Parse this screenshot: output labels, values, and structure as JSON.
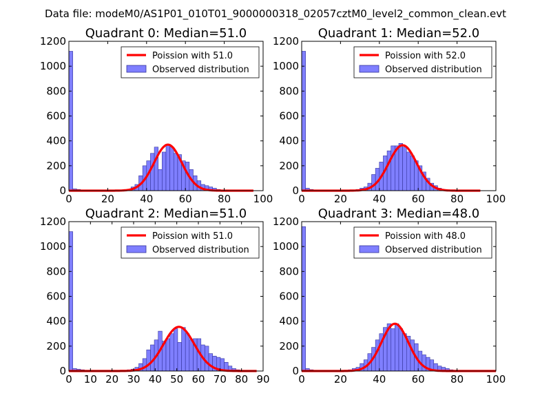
{
  "suptitle": "Data file: modeM0/AS1P01_010T01_9000000318_02057cztM0_level2_common_clean.evt",
  "colors": {
    "bar": "#7f7fff",
    "bar_edge": "#333399",
    "fit": "#ff0000"
  },
  "chart_data": [
    {
      "type": "bar",
      "title": "Quadrant 0: Median=51.0",
      "legend": [
        "Poission with 51.0",
        "Observed distribution"
      ],
      "legend_position": "top-right",
      "xlim": [
        0,
        100
      ],
      "ylim": [
        0,
        1200
      ],
      "xticks": [
        0,
        20,
        40,
        60,
        80,
        100
      ],
      "yticks": [
        0,
        200,
        400,
        600,
        800,
        1000,
        1200
      ],
      "bin_width": 2.0,
      "bins": [
        [
          0,
          1120
        ],
        [
          2,
          15
        ],
        [
          4,
          10
        ],
        [
          6,
          4
        ],
        [
          8,
          3
        ],
        [
          10,
          2
        ],
        [
          30,
          10
        ],
        [
          32,
          30
        ],
        [
          34,
          50
        ],
        [
          36,
          120
        ],
        [
          38,
          200
        ],
        [
          40,
          240
        ],
        [
          42,
          300
        ],
        [
          44,
          350
        ],
        [
          46,
          170
        ],
        [
          48,
          310
        ],
        [
          50,
          370
        ],
        [
          52,
          350
        ],
        [
          54,
          300
        ],
        [
          56,
          290
        ],
        [
          58,
          240
        ],
        [
          60,
          230
        ],
        [
          62,
          170
        ],
        [
          64,
          120
        ],
        [
          66,
          80
        ],
        [
          68,
          50
        ],
        [
          70,
          40
        ],
        [
          72,
          30
        ],
        [
          74,
          20
        ],
        [
          76,
          10
        ],
        [
          78,
          5
        ],
        [
          80,
          3
        ]
      ],
      "poisson_mean": 51.0,
      "poisson_peak": 370,
      "fit_range": [
        0,
        95
      ]
    },
    {
      "type": "bar",
      "title": "Quadrant 1: Median=52.0",
      "legend": [
        "Poission with 52.0",
        "Observed distribution"
      ],
      "legend_position": "top-right",
      "xlim": [
        0,
        100
      ],
      "ylim": [
        0,
        1200
      ],
      "xticks": [
        0,
        20,
        40,
        60,
        80,
        100
      ],
      "yticks": [
        0,
        200,
        400,
        600,
        800,
        1000,
        1200
      ],
      "bin_width": 2.0,
      "bins": [
        [
          0,
          1120
        ],
        [
          2,
          20
        ],
        [
          4,
          10
        ],
        [
          6,
          5
        ],
        [
          8,
          3
        ],
        [
          10,
          2
        ],
        [
          28,
          10
        ],
        [
          30,
          20
        ],
        [
          32,
          30
        ],
        [
          34,
          60
        ],
        [
          36,
          130
        ],
        [
          38,
          180
        ],
        [
          40,
          230
        ],
        [
          42,
          280
        ],
        [
          44,
          320
        ],
        [
          46,
          360
        ],
        [
          48,
          360
        ],
        [
          50,
          380
        ],
        [
          52,
          350
        ],
        [
          54,
          310
        ],
        [
          56,
          280
        ],
        [
          58,
          240
        ],
        [
          60,
          200
        ],
        [
          62,
          150
        ],
        [
          64,
          100
        ],
        [
          66,
          60
        ],
        [
          68,
          40
        ],
        [
          70,
          20
        ],
        [
          72,
          10
        ],
        [
          74,
          5
        ]
      ],
      "poisson_mean": 52.0,
      "poisson_peak": 365,
      "fit_range": [
        0,
        92
      ]
    },
    {
      "type": "bar",
      "title": "Quadrant 2: Median=51.0",
      "legend": [
        "Poission with 51.0",
        "Observed distribution"
      ],
      "legend_position": "top-right",
      "xlim": [
        0,
        90
      ],
      "ylim": [
        0,
        1200
      ],
      "xticks": [
        0,
        10,
        20,
        30,
        40,
        50,
        60,
        70,
        80,
        90
      ],
      "yticks": [
        0,
        200,
        400,
        600,
        800,
        1000,
        1200
      ],
      "bin_width": 1.8,
      "bins": [
        [
          0,
          1120
        ],
        [
          1.8,
          20
        ],
        [
          3.6,
          15
        ],
        [
          5.4,
          10
        ],
        [
          7.2,
          5
        ],
        [
          27,
          10
        ],
        [
          28.8,
          15
        ],
        [
          30.6,
          30
        ],
        [
          32.4,
          60
        ],
        [
          34.2,
          100
        ],
        [
          36,
          170
        ],
        [
          37.8,
          210
        ],
        [
          39.6,
          250
        ],
        [
          41.4,
          320
        ],
        [
          43.2,
          240
        ],
        [
          45,
          260
        ],
        [
          46.8,
          300
        ],
        [
          48.6,
          340
        ],
        [
          50.4,
          230
        ],
        [
          52.2,
          350
        ],
        [
          54,
          300
        ],
        [
          55.8,
          250
        ],
        [
          57.6,
          260
        ],
        [
          59.4,
          260
        ],
        [
          61.2,
          210
        ],
        [
          63,
          200
        ],
        [
          64.8,
          140
        ],
        [
          66.6,
          120
        ],
        [
          68.4,
          110
        ],
        [
          70.2,
          100
        ],
        [
          72,
          70
        ],
        [
          73.8,
          40
        ],
        [
          75.6,
          20
        ],
        [
          77.4,
          10
        ],
        [
          79.2,
          5
        ]
      ],
      "poisson_mean": 51.0,
      "poisson_peak": 355,
      "fit_range": [
        0,
        87
      ]
    },
    {
      "type": "bar",
      "title": "Quadrant 3: Median=48.0",
      "legend": [
        "Poission with 48.0",
        "Observed distribution"
      ],
      "legend_position": "top-right",
      "xlim": [
        0,
        100
      ],
      "ylim": [
        0,
        1200
      ],
      "xticks": [
        0,
        20,
        40,
        60,
        80,
        100
      ],
      "yticks": [
        0,
        200,
        400,
        600,
        800,
        1000,
        1200
      ],
      "bin_width": 2.0,
      "bins": [
        [
          0,
          1160
        ],
        [
          2,
          20
        ],
        [
          4,
          10
        ],
        [
          6,
          5
        ],
        [
          8,
          3
        ],
        [
          10,
          2
        ],
        [
          24,
          10
        ],
        [
          26,
          20
        ],
        [
          28,
          30
        ],
        [
          30,
          60
        ],
        [
          32,
          90
        ],
        [
          34,
          140
        ],
        [
          36,
          190
        ],
        [
          38,
          250
        ],
        [
          40,
          300
        ],
        [
          42,
          350
        ],
        [
          44,
          380
        ],
        [
          46,
          340
        ],
        [
          48,
          380
        ],
        [
          50,
          340
        ],
        [
          52,
          300
        ],
        [
          54,
          280
        ],
        [
          56,
          250
        ],
        [
          58,
          220
        ],
        [
          60,
          160
        ],
        [
          62,
          130
        ],
        [
          64,
          110
        ],
        [
          66,
          90
        ],
        [
          68,
          60
        ],
        [
          70,
          40
        ],
        [
          72,
          30
        ],
        [
          74,
          20
        ],
        [
          76,
          10
        ],
        [
          78,
          5
        ]
      ],
      "poisson_mean": 48.0,
      "poisson_peak": 380,
      "fit_range": [
        0,
        100
      ]
    }
  ]
}
